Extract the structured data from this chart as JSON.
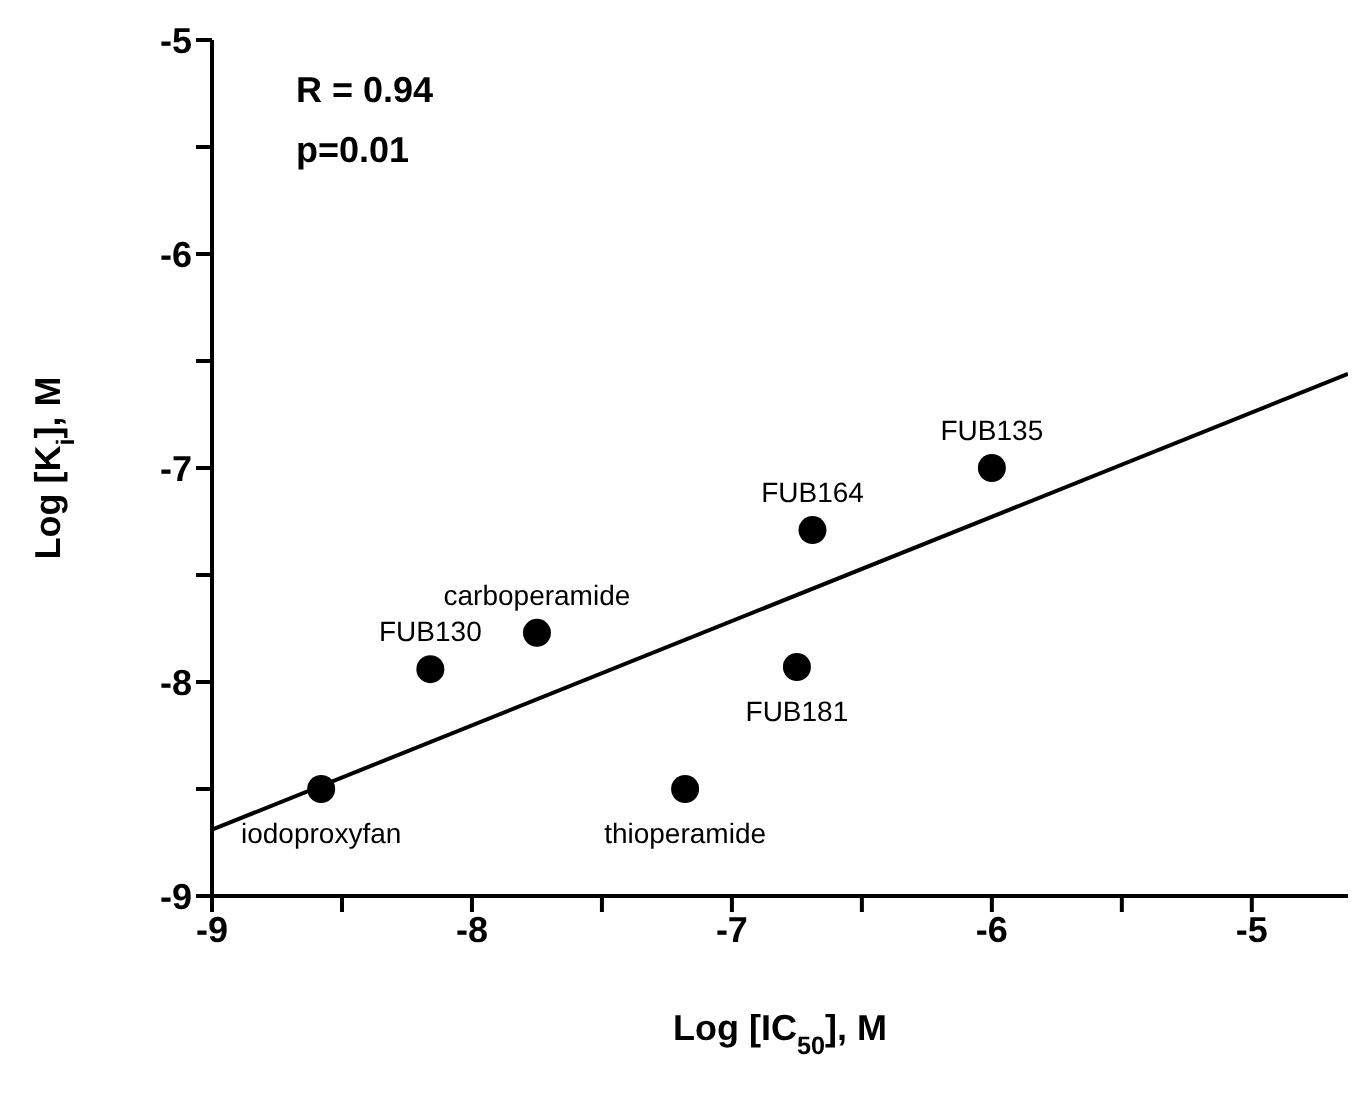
{
  "chart_data": {
    "type": "scatter",
    "xlabel": "Log [IC$_{50}$], M",
    "ylabel": "Log [K$_{i}$], M",
    "xlim": [
      -9,
      -4.63
    ],
    "ylim": [
      -9,
      -5
    ],
    "xticks": [
      -9,
      {
        "value": -8.5,
        "label": null
      },
      -8,
      {
        "value": -7.5,
        "label": null
      },
      -7,
      {
        "value": -6.5,
        "label": null
      },
      -6,
      {
        "value": -5.5,
        "label": null
      },
      -5
    ],
    "yticks": [
      -9,
      {
        "value": -8.5,
        "label": null
      },
      -8,
      {
        "value": -7.5,
        "label": null
      },
      -7,
      {
        "value": -6.5,
        "label": null
      },
      -6,
      {
        "value": -5.5,
        "label": null
      },
      -5
    ],
    "marker": "circle",
    "series": [
      {
        "type": "scatter",
        "color": "#000000",
        "x": [
          -8.58,
          -8.16,
          -7.75,
          -7.18,
          -6.75,
          -6.69,
          -6.0
        ],
        "values": [
          -8.5,
          -7.94,
          -7.77,
          -8.5,
          -7.93,
          -7.29,
          -7.0
        ]
      },
      {
        "type": "line",
        "color": "#000000",
        "marker": "none",
        "line_style": "solid",
        "x": [
          -9,
          -4.63
        ],
        "values": [
          -8.69,
          -6.56
        ]
      }
    ],
    "annotations": [
      "R = 0.94",
      "p=0.01",
      {
        "text": "iodoproxyfan",
        "x": -8.58,
        "y": -8.5
      },
      {
        "text": "FUB130",
        "x": -8.16,
        "y": -7.94
      },
      {
        "text": "carboperamide",
        "x": -7.75,
        "y": -7.77
      },
      {
        "text": "thioperamide",
        "x": -7.18,
        "y": -8.5
      },
      {
        "text": "FUB181",
        "x": -6.75,
        "y": -7.93
      },
      {
        "text": "FUB164",
        "x": -6.69,
        "y": -7.29
      },
      {
        "text": "FUB135",
        "x": -6.0,
        "y": -7.0
      }
    ]
  }
}
